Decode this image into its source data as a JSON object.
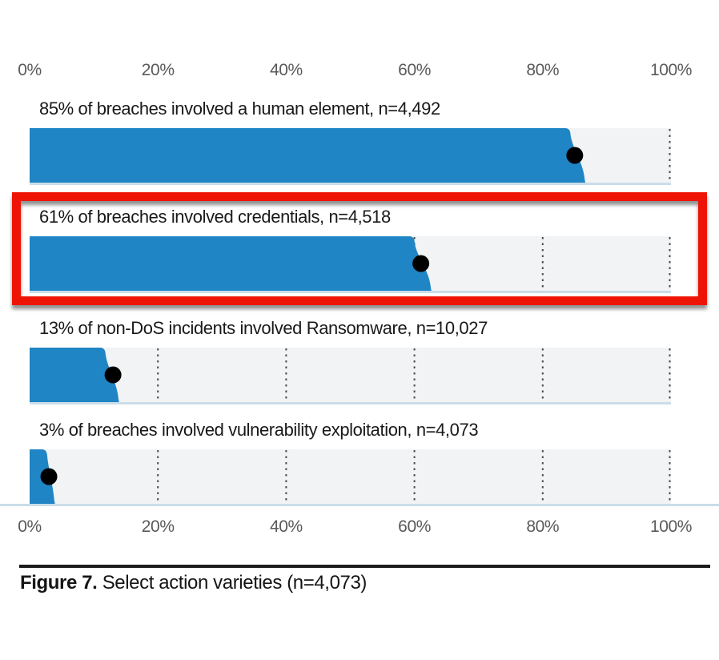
{
  "axis": {
    "ticks": [
      "0%",
      "20%",
      "40%",
      "60%",
      "80%",
      "100%"
    ]
  },
  "bars": [
    {
      "label": "85% of breaches involved a human element, n=4,492",
      "pct": 85,
      "edge_top_pct": 84.2,
      "edge_bottom_pct": 86.6,
      "n": "4,492",
      "highlighted": false
    },
    {
      "label": "61% of breaches involved credentials, n=4,518",
      "pct": 61,
      "edge_top_pct": 59.9,
      "edge_bottom_pct": 62.6,
      "n": "4,518",
      "highlighted": true
    },
    {
      "label": "13% of non-DoS incidents involved Ransomware, n=10,027",
      "pct": 13,
      "edge_top_pct": 11.7,
      "edge_bottom_pct": 13.9,
      "n": "10,027",
      "highlighted": false
    },
    {
      "label": "3% of breaches involved vulnerability exploitation, n=4,073",
      "pct": 3,
      "edge_top_pct": 2.6,
      "edge_bottom_pct": 3.9,
      "n": "4,073",
      "highlighted": false
    }
  ],
  "caption": {
    "prefix": "Figure 7.",
    "rest": " Select action varieties (n=4,073)"
  },
  "colors": {
    "bar": "#1f85c4",
    "dot": "#000000",
    "track": "#f2f3f4",
    "gridline": "#4a4a4a",
    "baseline": "#cbdde9",
    "highlight": "#ee1405",
    "axis_text": "#5a5a5a",
    "label_text": "#191919",
    "rule": "#1c1c1c"
  },
  "chart_data": {
    "type": "bar",
    "orientation": "horizontal",
    "title": "Figure 7. Select action varieties (n=4,073)",
    "categories": [
      "Breaches involving a human element",
      "Breaches involving credentials",
      "Non-DoS incidents involving Ransomware",
      "Breaches involving vulnerability exploitation"
    ],
    "values": [
      85,
      61,
      13,
      3
    ],
    "sample_sizes": [
      "4,492",
      "4,518",
      "10,027",
      "4,073"
    ],
    "x_ticks": [
      "0%",
      "20%",
      "40%",
      "60%",
      "80%",
      "100%"
    ],
    "xlim": [
      0,
      100
    ],
    "grid": "dotted vertical gridlines every 20%, axis labels on top and bottom",
    "point_marker": "black dot at the stated percentage on each bar",
    "bar_edge_bands": [
      [
        84.2,
        86.6
      ],
      [
        59.9,
        62.6
      ],
      [
        11.7,
        13.9
      ],
      [
        2.6,
        3.9
      ]
    ],
    "annotation": "thick red rectangle highlighting the 61% credentials bar"
  }
}
